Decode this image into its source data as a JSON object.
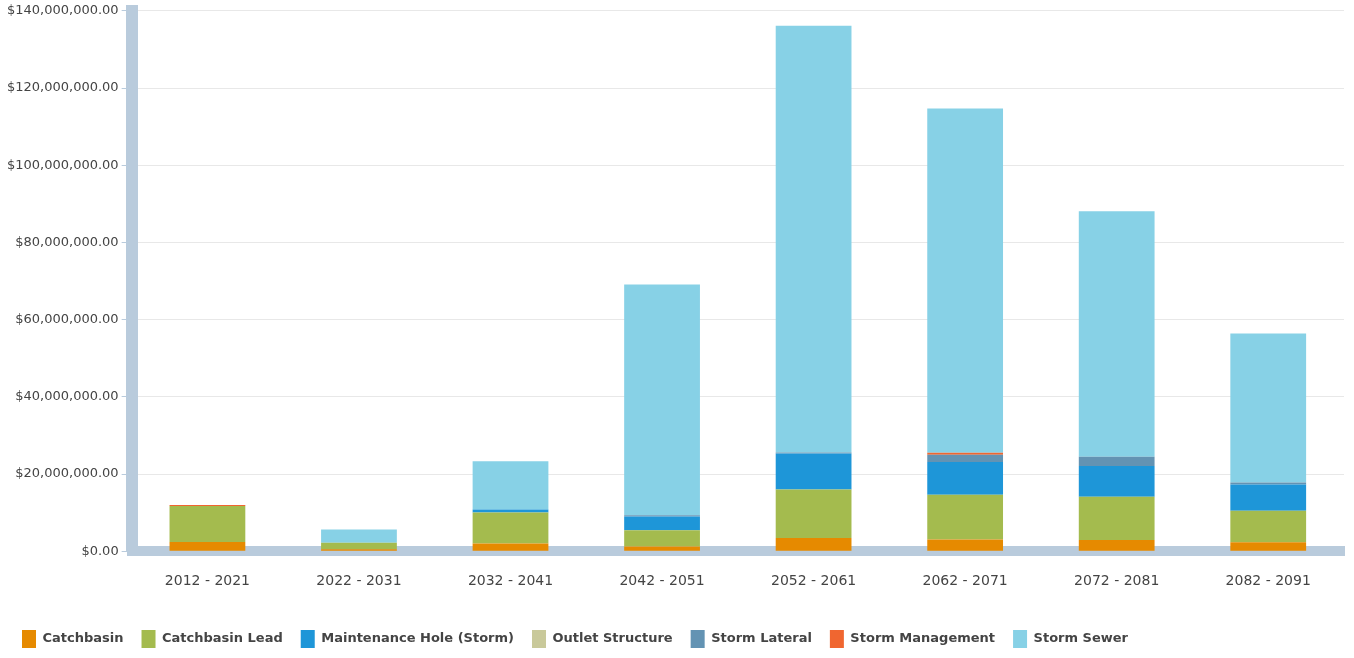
{
  "chart_data": {
    "type": "bar",
    "stacked": true,
    "categories": [
      "2012 - 2021",
      "2022 - 2031",
      "2032 - 2041",
      "2042 - 2051",
      "2052 - 2061",
      "2062 - 2071",
      "2072 - 2081",
      "2082 - 2091"
    ],
    "series": [
      {
        "name": "Catchbasin",
        "color": "#e68a00",
        "values": [
          2400000,
          500000,
          2000000,
          1200000,
          3400000,
          3000000,
          2900000,
          2300000
        ]
      },
      {
        "name": "Catchbasin Lead",
        "color": "#a4bb4e",
        "values": [
          9300000,
          1700000,
          8000000,
          4200000,
          12600000,
          11600000,
          11200000,
          8200000
        ]
      },
      {
        "name": "Maintenance Hole (Storm)",
        "color": "#1e96d8",
        "values": [
          0,
          0,
          800000,
          3600000,
          9300000,
          8500000,
          8000000,
          6800000
        ]
      },
      {
        "name": "Outlet Structure",
        "color": "#c9c99a",
        "values": [
          0,
          0,
          0,
          0,
          null,
          0,
          0,
          0
        ]
      },
      {
        "name": "Storm Lateral",
        "color": "#6393b3",
        "values": [
          0,
          0,
          0,
          300000,
          300000,
          1900000,
          2400000,
          500000
        ]
      },
      {
        "name": "Storm Management",
        "color": "#f06630",
        "values": [
          300000,
          0,
          0,
          null,
          null,
          500000,
          null,
          0
        ]
      },
      {
        "name": "Storm Sewer",
        "color": "#87d1e6",
        "values": [
          0,
          3400000,
          12500000,
          59800000,
          110500000,
          89200000,
          63600000,
          38600000
        ]
      }
    ],
    "ylim": [
      0,
      140000000
    ],
    "yticks": [
      {
        "value": 0,
        "label": "$0.00"
      },
      {
        "value": 20000000,
        "label": "$20,000,000.00"
      },
      {
        "value": 40000000,
        "label": "$40,000,000.00"
      },
      {
        "value": 60000000,
        "label": "$60,000,000.00"
      },
      {
        "value": 80000000,
        "label": "$80,000,000.00"
      },
      {
        "value": 100000000,
        "label": "$100,000,000.00"
      },
      {
        "value": 120000000,
        "label": "$120,000,000.00"
      },
      {
        "value": 140000000,
        "label": "$140,000,000.00"
      }
    ],
    "grid": "y",
    "legend": "bottom"
  }
}
